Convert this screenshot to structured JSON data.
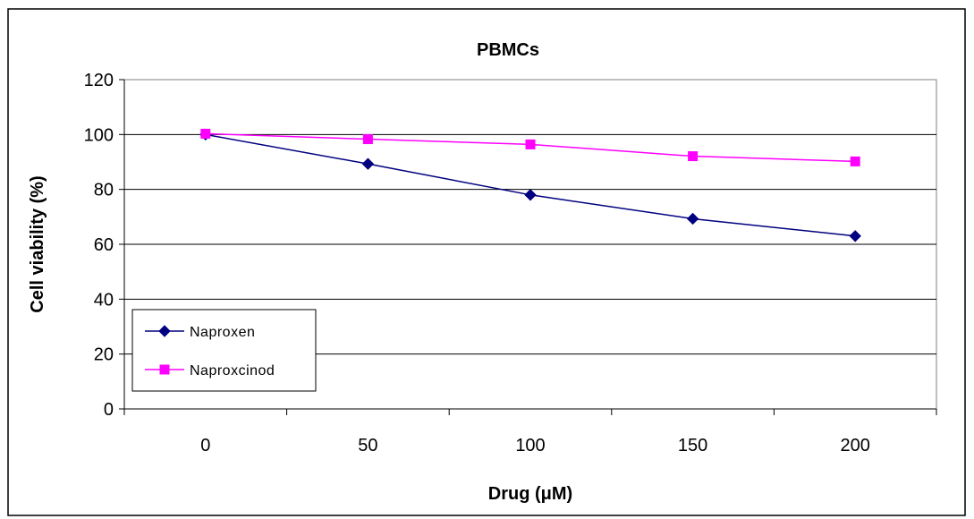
{
  "chart_data": {
    "type": "line",
    "title": "PBMCs",
    "xlabel": "Drug (μM)",
    "ylabel": "Cell viability (%)",
    "categories": [
      "0",
      "50",
      "100",
      "150",
      "200"
    ],
    "x": [
      0,
      50,
      100,
      150,
      200
    ],
    "ylim": [
      0,
      120
    ],
    "yticks": [
      0,
      20,
      40,
      60,
      80,
      100,
      120
    ],
    "grid": true,
    "legend_position": "bottom-left",
    "series": [
      {
        "name": "Naproxen",
        "values": [
          100,
          89.3,
          78,
          69.3,
          63
        ],
        "color": "#000080",
        "marker": "diamond"
      },
      {
        "name": "Naproxcinod",
        "values": [
          100.3,
          98.3,
          96.4,
          92.1,
          90.2
        ],
        "color": "#ff00ff",
        "marker": "square"
      }
    ]
  }
}
